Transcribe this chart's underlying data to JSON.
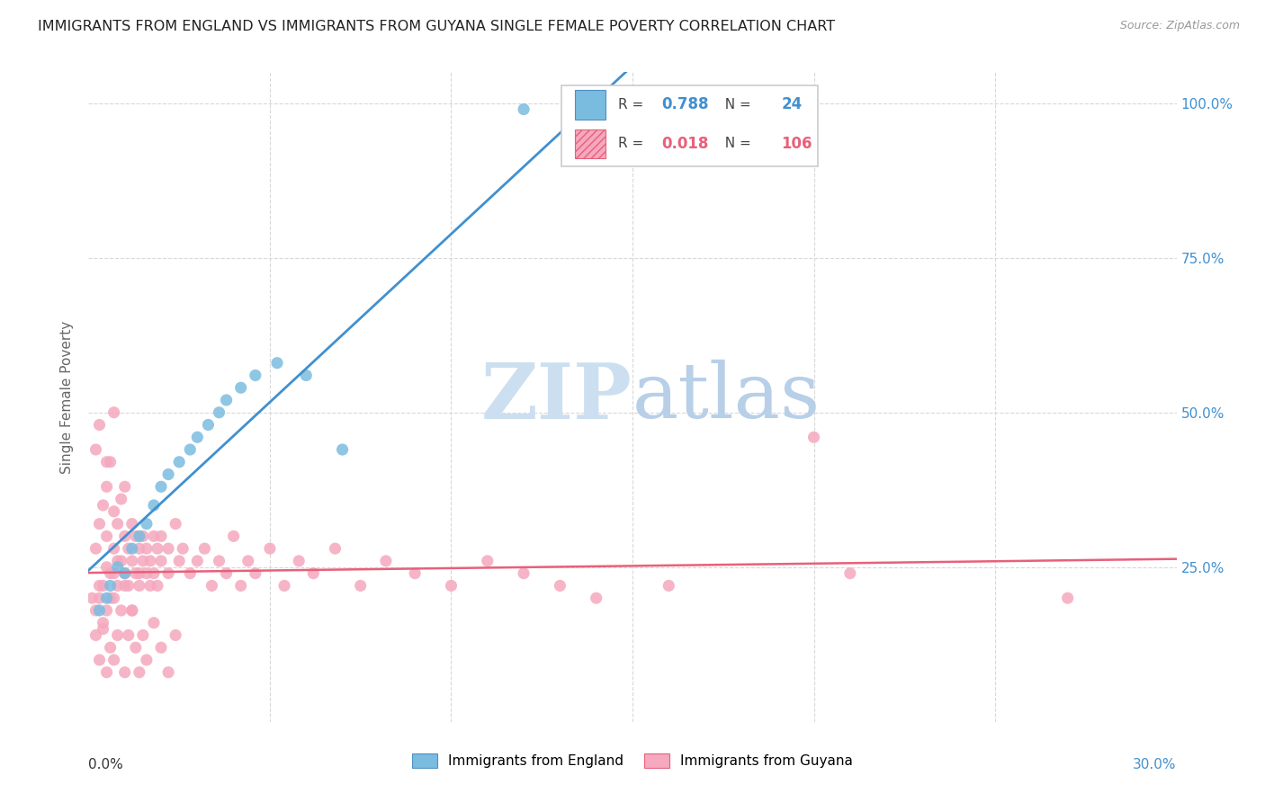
{
  "title": "IMMIGRANTS FROM ENGLAND VS IMMIGRANTS FROM GUYANA SINGLE FEMALE POVERTY CORRELATION CHART",
  "source": "Source: ZipAtlas.com",
  "ylabel": "Single Female Poverty",
  "xmin": 0.0,
  "xmax": 0.3,
  "ymin": 0.0,
  "ymax": 1.05,
  "england_R": 0.788,
  "england_N": 24,
  "guyana_R": 0.018,
  "guyana_N": 106,
  "england_color": "#7abce0",
  "guyana_color": "#f5a8be",
  "england_trend_color": "#4090d0",
  "guyana_trend_color": "#e8607a",
  "watermark_zip_color": "#ccdff0",
  "watermark_atlas_color": "#b8cfe8",
  "background_color": "#ffffff",
  "grid_color": "#d8d8d8",
  "england_x": [
    0.003,
    0.005,
    0.006,
    0.008,
    0.01,
    0.012,
    0.014,
    0.016,
    0.018,
    0.02,
    0.022,
    0.025,
    0.028,
    0.03,
    0.033,
    0.036,
    0.038,
    0.042,
    0.046,
    0.052,
    0.06,
    0.07,
    0.12,
    0.155
  ],
  "england_y": [
    0.18,
    0.2,
    0.22,
    0.25,
    0.24,
    0.28,
    0.3,
    0.32,
    0.35,
    0.38,
    0.4,
    0.42,
    0.44,
    0.46,
    0.48,
    0.5,
    0.52,
    0.54,
    0.56,
    0.58,
    0.56,
    0.44,
    0.99,
    0.99
  ],
  "guyana_x": [
    0.001,
    0.002,
    0.002,
    0.003,
    0.003,
    0.004,
    0.004,
    0.005,
    0.005,
    0.005,
    0.006,
    0.006,
    0.007,
    0.007,
    0.007,
    0.008,
    0.008,
    0.009,
    0.009,
    0.01,
    0.01,
    0.01,
    0.011,
    0.011,
    0.012,
    0.012,
    0.013,
    0.013,
    0.014,
    0.014,
    0.015,
    0.015,
    0.016,
    0.016,
    0.017,
    0.017,
    0.018,
    0.018,
    0.019,
    0.019,
    0.02,
    0.02,
    0.022,
    0.022,
    0.024,
    0.025,
    0.026,
    0.028,
    0.03,
    0.032,
    0.034,
    0.036,
    0.038,
    0.04,
    0.042,
    0.044,
    0.046,
    0.05,
    0.054,
    0.058,
    0.062,
    0.068,
    0.075,
    0.082,
    0.09,
    0.1,
    0.11,
    0.12,
    0.13,
    0.14,
    0.002,
    0.003,
    0.004,
    0.005,
    0.006,
    0.007,
    0.008,
    0.009,
    0.01,
    0.011,
    0.012,
    0.013,
    0.014,
    0.015,
    0.016,
    0.018,
    0.02,
    0.022,
    0.024,
    0.003,
    0.004,
    0.005,
    0.006,
    0.007,
    0.008,
    0.01,
    0.012,
    0.014,
    0.2,
    0.21,
    0.002,
    0.003,
    0.005,
    0.007,
    0.16,
    0.27
  ],
  "guyana_y": [
    0.2,
    0.18,
    0.28,
    0.22,
    0.32,
    0.15,
    0.35,
    0.25,
    0.3,
    0.38,
    0.2,
    0.42,
    0.24,
    0.34,
    0.28,
    0.22,
    0.32,
    0.26,
    0.36,
    0.3,
    0.24,
    0.38,
    0.28,
    0.22,
    0.32,
    0.26,
    0.24,
    0.3,
    0.22,
    0.28,
    0.26,
    0.3,
    0.24,
    0.28,
    0.22,
    0.26,
    0.3,
    0.24,
    0.28,
    0.22,
    0.26,
    0.3,
    0.28,
    0.24,
    0.32,
    0.26,
    0.28,
    0.24,
    0.26,
    0.28,
    0.22,
    0.26,
    0.24,
    0.3,
    0.22,
    0.26,
    0.24,
    0.28,
    0.22,
    0.26,
    0.24,
    0.28,
    0.22,
    0.26,
    0.24,
    0.22,
    0.26,
    0.24,
    0.22,
    0.2,
    0.14,
    0.1,
    0.16,
    0.08,
    0.12,
    0.1,
    0.14,
    0.18,
    0.08,
    0.14,
    0.18,
    0.12,
    0.08,
    0.14,
    0.1,
    0.16,
    0.12,
    0.08,
    0.14,
    0.2,
    0.22,
    0.18,
    0.24,
    0.2,
    0.26,
    0.22,
    0.18,
    0.24,
    0.46,
    0.24,
    0.44,
    0.48,
    0.42,
    0.5,
    0.22,
    0.2
  ]
}
